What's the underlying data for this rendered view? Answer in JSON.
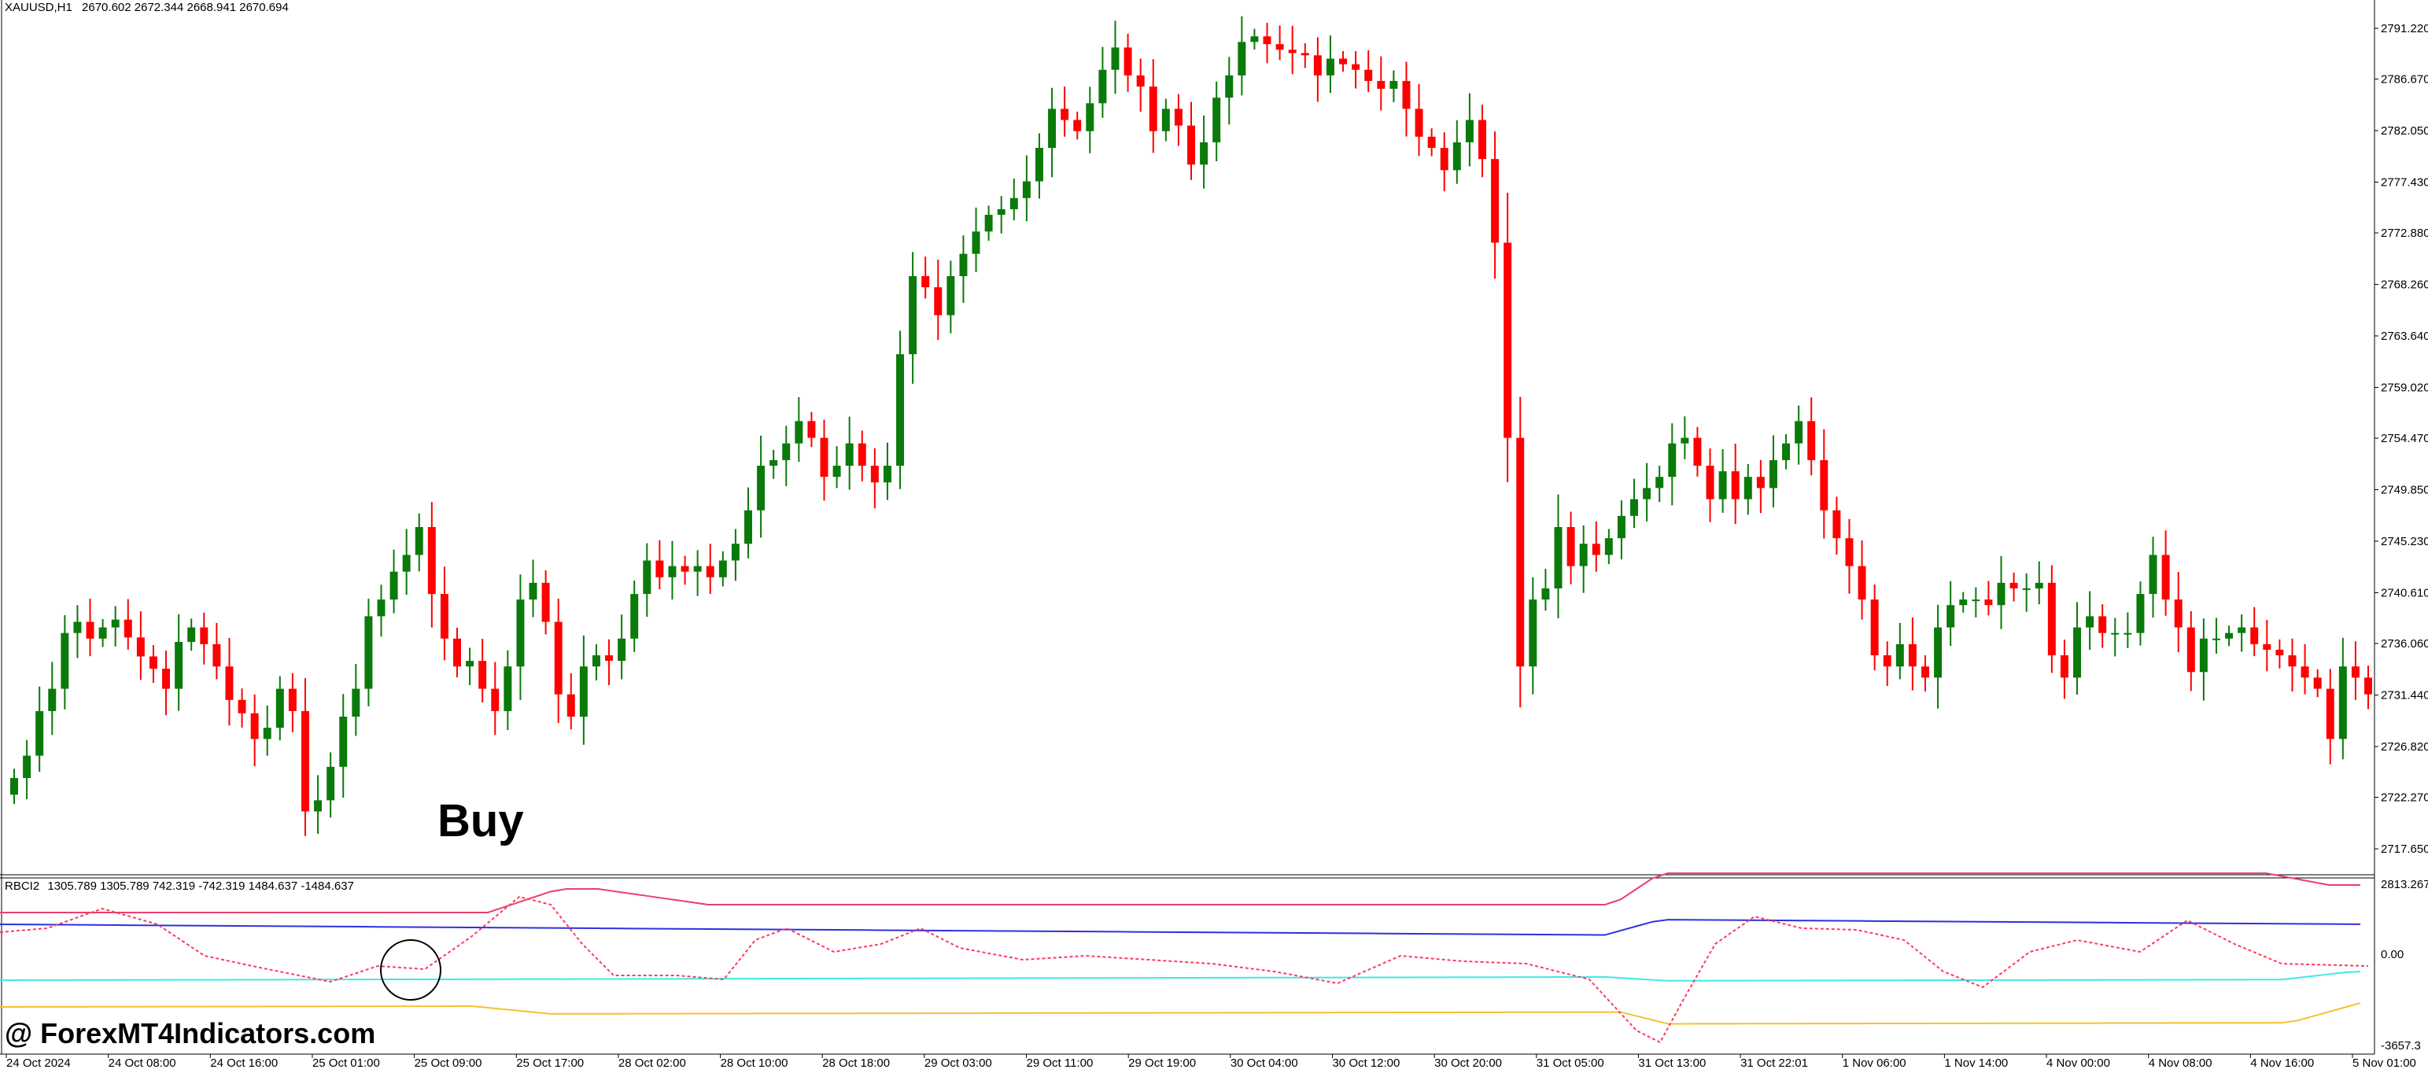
{
  "header": {
    "symbol": "XAUUSD,H1",
    "ohlc": "2670.602 2672.344 2668.941 2670.694"
  },
  "indicator": {
    "title": "RBCI2",
    "values": "1305.789 1305.789 742.319 -742.319 1484.637 -1484.637",
    "scale_top": "2813.267",
    "scale_mid": "0.00",
    "scale_bottom": "-3657.3"
  },
  "annotations": {
    "buy_label": "Buy",
    "watermark": "@ ForexMT4Indicators.com"
  },
  "colors": {
    "bull": "#0a7a0a",
    "bear": "#ff0000",
    "upper_band": "#e8406e",
    "signal": "#ff3b5f",
    "blue_line": "#3030e0",
    "cyan_line": "#40e8e8",
    "gold_line": "#f2c230"
  },
  "chart_data": {
    "type": "candlestick",
    "price_axis": {
      "range": [
        2716.0,
        2795.0
      ],
      "ticks": [
        "2791.220",
        "2786.670",
        "2782.050",
        "2777.430",
        "2772.880",
        "2768.260",
        "2763.640",
        "2759.020",
        "2754.470",
        "2749.850",
        "2745.230",
        "2740.610",
        "2736.060",
        "2731.440",
        "2726.820",
        "2722.270",
        "2717.650"
      ]
    },
    "time_axis_labels": [
      "24 Oct 2024",
      "24 Oct 08:00",
      "24 Oct 16:00",
      "25 Oct 01:00",
      "25 Oct 09:00",
      "25 Oct 17:00",
      "28 Oct 02:00",
      "28 Oct 10:00",
      "28 Oct 18:00",
      "29 Oct 03:00",
      "29 Oct 11:00",
      "29 Oct 19:00",
      "30 Oct 04:00",
      "30 Oct 12:00",
      "30 Oct 20:00",
      "31 Oct 05:00",
      "31 Oct 13:00",
      "31 Oct 22:01",
      "1 Nov 06:00",
      "1 Nov 14:00",
      "4 Nov 00:00",
      "4 Nov 08:00",
      "4 Nov 16:00",
      "5 Nov 01:00"
    ],
    "close_path": [
      2724.0,
      2726.0,
      2730.0,
      2732.0,
      2737.0,
      2738.0,
      2736.5,
      2737.5,
      2738.2,
      2736.6,
      2734.9,
      2733.8,
      2732.0,
      2736.2,
      2737.5,
      2736.0,
      2734.0,
      2731.0,
      2729.8,
      2727.5,
      2728.5,
      2732.0,
      2730.0,
      2721.0,
      2722.0,
      2725.0,
      2729.5,
      2732.0,
      2738.5,
      2740.0,
      2742.5,
      2744.0,
      2746.5,
      2740.5,
      2736.5,
      2734.0,
      2734.5,
      2732.0,
      2730.0,
      2734.0,
      2740.0,
      2741.5,
      2738.0,
      2731.5,
      2729.5,
      2734.0,
      2735.0,
      2734.5,
      2736.5,
      2740.5,
      2743.5,
      2742.0,
      2743.0,
      2742.5,
      2743.0,
      2742.0,
      2743.5,
      2745.0,
      2748.0,
      2752.0,
      2752.5,
      2754.0,
      2756.0,
      2754.5,
      2751.0,
      2752.0,
      2754.0,
      2752.0,
      2750.5,
      2752.0,
      2762.0,
      2769.0,
      2768.0,
      2765.5,
      2769.0,
      2771.0,
      2773.0,
      2774.5,
      2775.0,
      2776.0,
      2777.5,
      2780.5,
      2784.0,
      2783.0,
      2782.0,
      2784.5,
      2787.5,
      2789.5,
      2787.0,
      2786.0,
      2782.0,
      2784.0,
      2782.5,
      2779.0,
      2781.0,
      2785.0,
      2787.0,
      2790.0,
      2790.5,
      2789.8,
      2789.3,
      2789.0,
      2788.8,
      2787.0,
      2788.5,
      2788.0,
      2787.5,
      2786.5,
      2785.8,
      2786.5,
      2784.0,
      2781.5,
      2780.5,
      2778.5,
      2781.0,
      2783.0,
      2779.5,
      2772.0,
      2754.5,
      2734.0,
      2740.0,
      2741.0,
      2746.5,
      2743.0,
      2745.0,
      2744.0,
      2745.5,
      2747.5,
      2749.0,
      2750.0,
      2751.0,
      2754.0,
      2754.5,
      2752.0,
      2749.0,
      2751.5,
      2749.0,
      2751.0,
      2750.0,
      2752.5,
      2754.0,
      2756.0,
      2752.5,
      2748.0,
      2745.5,
      2743.0,
      2740.0,
      2735.0,
      2734.0,
      2736.0,
      2734.0,
      2733.0,
      2737.5,
      2739.5,
      2740.0,
      2740.0,
      2739.5,
      2741.5,
      2741.0,
      2741.0,
      2741.5,
      2735.0,
      2733.0,
      2737.5,
      2738.5,
      2737.0,
      2737.0,
      2737.0,
      2740.5,
      2744.0,
      2740.0,
      2737.5,
      2733.5,
      2736.5,
      2736.5,
      2737.0,
      2737.5,
      2736.0,
      2735.5,
      2735.0,
      2734.0,
      2733.0,
      2732.0,
      2727.5,
      2734.0,
      2733.0,
      2731.5
    ]
  }
}
